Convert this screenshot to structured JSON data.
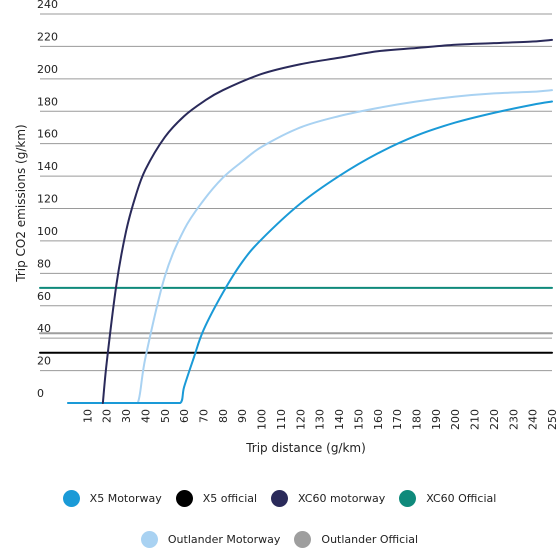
{
  "chart_data": {
    "type": "line",
    "title": "",
    "xlabel": "Trip distance (g/km)",
    "ylabel": "Trip CO2 emissions (g/km)",
    "xlim": [
      0,
      250
    ],
    "ylim": [
      0,
      240
    ],
    "x_ticks": [
      10,
      20,
      30,
      40,
      50,
      60,
      70,
      80,
      90,
      100,
      110,
      120,
      130,
      140,
      150,
      160,
      170,
      180,
      190,
      200,
      210,
      220,
      230,
      240,
      250
    ],
    "x_tick_labels": [
      "10",
      "20",
      "30",
      "40",
      "50",
      "60",
      "70",
      "80",
      "90",
      "100",
      "110",
      "120",
      "130",
      "140",
      "150",
      "160",
      "170",
      "180",
      "190",
      "200",
      "210",
      "220",
      "230",
      "240",
      "250"
    ],
    "y_tick_labels": [
      "0",
      "20",
      "40",
      "60",
      "80",
      "100",
      "120",
      "140",
      "160",
      "180",
      "200",
      "220",
      "240"
    ],
    "y_ticks": [
      0,
      20,
      40,
      60,
      80,
      100,
      120,
      140,
      160,
      180,
      200,
      220,
      240
    ],
    "grid": "horizontal",
    "legend_position": "bottom",
    "series": [
      {
        "name": "X5 Motorway",
        "color": "#1a9ad7",
        "x": [
          0,
          10,
          20,
          30,
          40,
          50,
          58,
          60,
          65,
          70,
          80,
          90,
          100,
          120,
          140,
          160,
          180,
          200,
          220,
          240,
          250
        ],
        "y": [
          0,
          0,
          0,
          0,
          0,
          0,
          0,
          10,
          28,
          45,
          68,
          87,
          101,
          123,
          140,
          154,
          165,
          173,
          179,
          184,
          186
        ]
      },
      {
        "name": "X5 official",
        "color": "#000000",
        "x": [
          0,
          250
        ],
        "y": [
          31,
          31
        ]
      },
      {
        "name": "XC60 motorway",
        "color": "#2a2a5a",
        "x": [
          18,
          20,
          25,
          30,
          35,
          40,
          50,
          60,
          70,
          80,
          100,
          120,
          140,
          160,
          180,
          200,
          220,
          240,
          250
        ],
        "y": [
          0,
          25,
          73,
          106,
          128,
          144,
          164,
          177,
          186,
          193,
          203,
          209,
          213,
          217,
          219,
          221,
          222,
          223,
          224
        ]
      },
      {
        "name": "XC60 Official",
        "color": "#0f8a7b",
        "x": [
          0,
          250
        ],
        "y": [
          71,
          71
        ]
      },
      {
        "name": "Outlander Motorway",
        "color": "#a9d2f2",
        "x": [
          0,
          10,
          20,
          30,
          36,
          40,
          50,
          60,
          70,
          80,
          90,
          100,
          120,
          140,
          160,
          180,
          200,
          220,
          240,
          250
        ],
        "y": [
          0,
          0,
          0,
          0,
          0,
          28,
          78,
          107,
          125,
          139,
          149,
          158,
          170,
          177,
          182,
          186,
          189,
          191,
          192,
          193
        ]
      },
      {
        "name": "Outlander Official",
        "color": "#9e9e9e",
        "x": [
          0,
          250
        ],
        "y": [
          43,
          43
        ]
      }
    ]
  },
  "legend": {
    "row1": [
      "X5 Motorway",
      "X5 official",
      "XC60 motorway",
      "XC60 Official"
    ],
    "row2": [
      "Outlander Motorway",
      "Outlander Official"
    ]
  }
}
